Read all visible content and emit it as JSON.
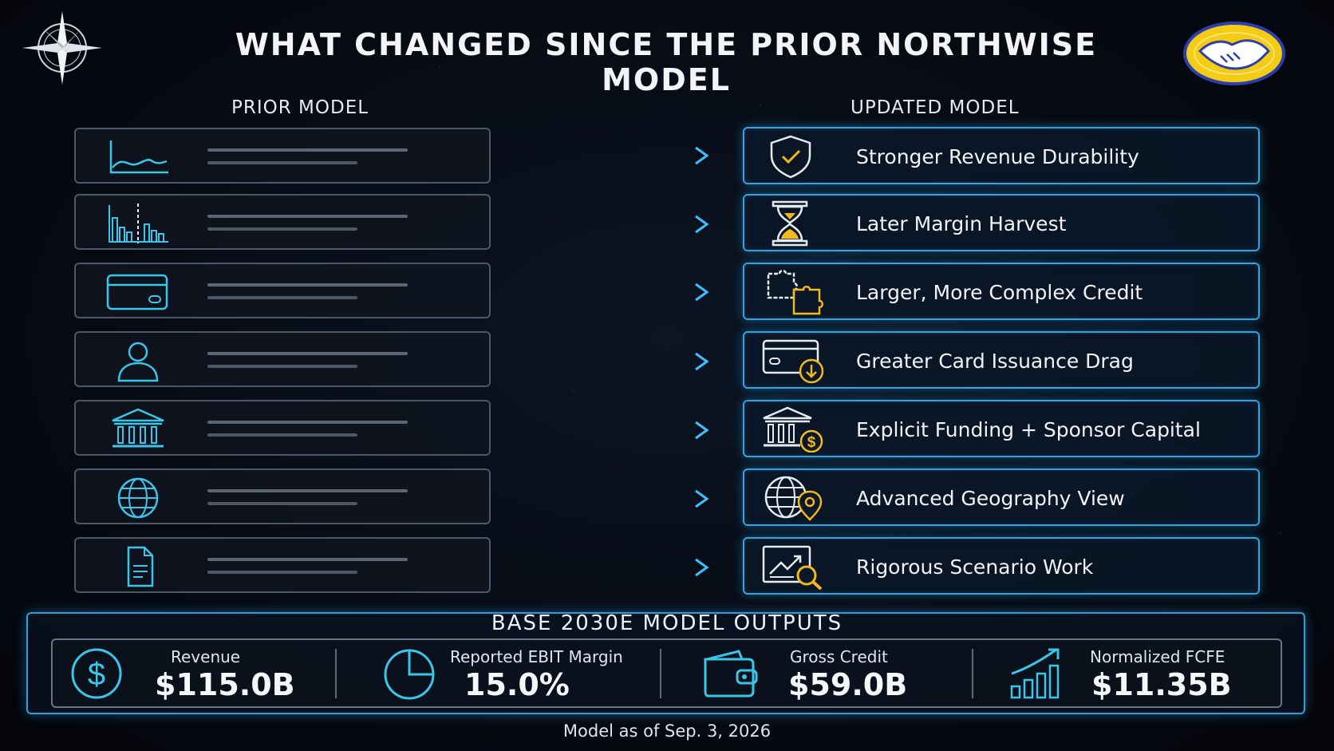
{
  "title": "WHAT CHANGED SINCE THE PRIOR NORTHWISE MODEL",
  "columns": {
    "prior": "PRIOR MODEL",
    "updated": "UPDATED MODEL"
  },
  "prior_icons": [
    "line-chart-icon",
    "bar-chart-icon",
    "credit-card-icon",
    "user-icon",
    "bank-icon",
    "globe-icon",
    "document-icon"
  ],
  "updated_items": [
    {
      "label": "Stronger Revenue Durability",
      "icon": "shield-check-icon"
    },
    {
      "label": "Later Margin Harvest",
      "icon": "hourglass-icon"
    },
    {
      "label": "Larger, More Complex Credit",
      "icon": "puzzle-icon"
    },
    {
      "label": "Greater Card Issuance Drag",
      "icon": "card-download-icon"
    },
    {
      "label": "Explicit Funding + Sponsor Capital",
      "icon": "bank-dollar-icon"
    },
    {
      "label": "Advanced Geography View",
      "icon": "globe-pin-icon"
    },
    {
      "label": "Rigorous Scenario Work",
      "icon": "chart-magnifier-icon"
    }
  ],
  "outputs": {
    "heading": "BASE 2030E MODEL OUTPUTS",
    "items": [
      {
        "label": "Revenue",
        "value": "$115.0B",
        "icon": "dollar-circle-icon"
      },
      {
        "label": "Reported EBIT Margin",
        "value": "15.0%",
        "icon": "pie-chart-icon"
      },
      {
        "label": "Gross Credit",
        "value": "$59.0B",
        "icon": "wallet-icon"
      },
      {
        "label": "Normalized FCFE",
        "value": "$11.35B",
        "icon": "growth-bars-icon"
      }
    ]
  },
  "footer": "Model as of Sep. 3, 2026",
  "colors": {
    "accent": "#2aa6e6",
    "gold": "#f2b820",
    "cyan": "#39c6e8"
  }
}
